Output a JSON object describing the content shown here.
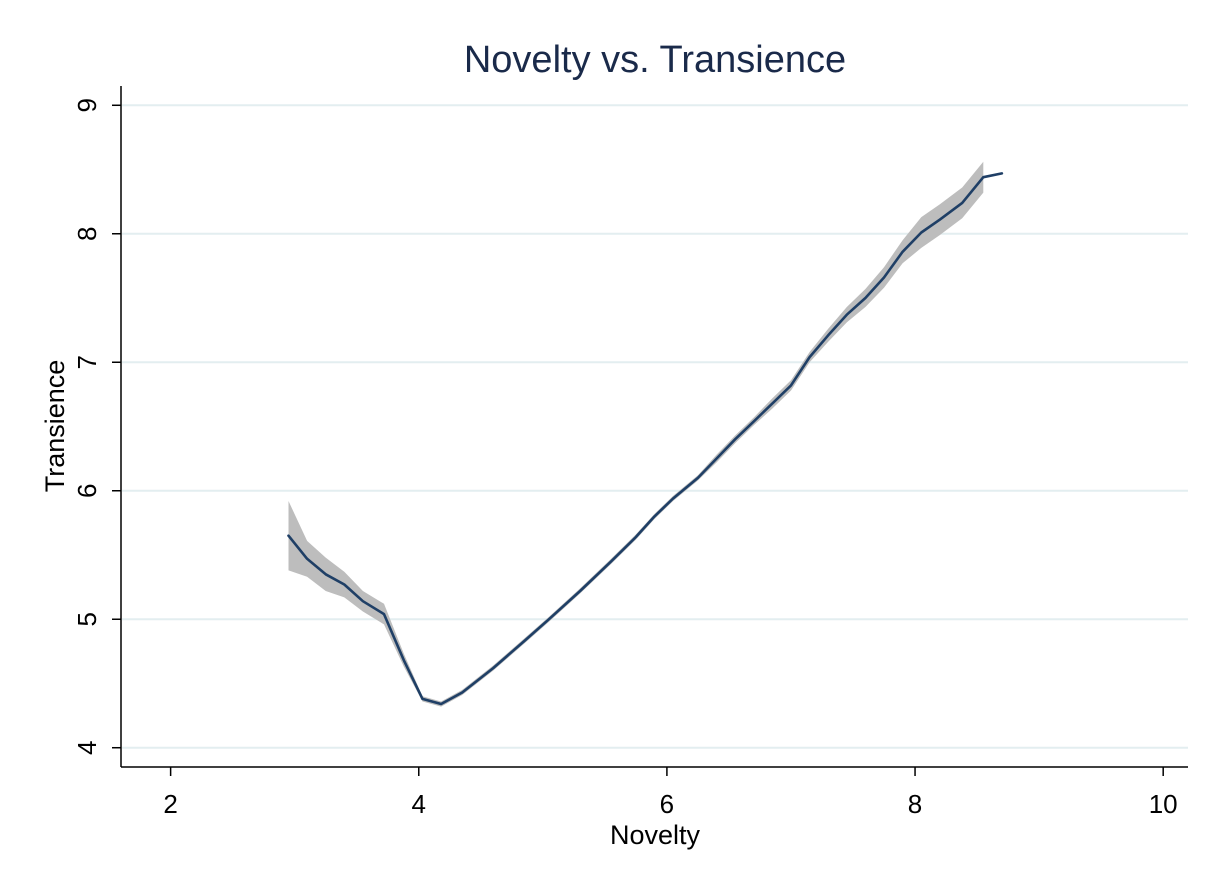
{
  "chart_data": {
    "type": "line",
    "title": "Novelty vs. Transience",
    "xlabel": "Novelty",
    "ylabel": "Transience",
    "xlim": [
      1.6,
      10.2
    ],
    "ylim": [
      3.85,
      9.15
    ],
    "xticks": [
      2,
      4,
      6,
      8,
      10
    ],
    "yticks": [
      4,
      5,
      6,
      7,
      8,
      9
    ],
    "grid": "horizontal",
    "colors": {
      "line": "#1f3f66",
      "band": "#bdbdbd",
      "grid": "#e3eef0",
      "axis": "#000000"
    },
    "series": [
      {
        "x": [
          2.95,
          3.1,
          3.25,
          3.4,
          3.55,
          3.72,
          3.88,
          4.03,
          4.18,
          4.35,
          4.6,
          4.85,
          5.05,
          5.3,
          5.55,
          5.75,
          5.9,
          6.05,
          6.25,
          6.4,
          6.55,
          6.7,
          6.85,
          7.0,
          7.15,
          7.3,
          7.45,
          7.6,
          7.75,
          7.9,
          8.05,
          8.2,
          8.38,
          8.55,
          8.7
        ],
        "y": [
          5.65,
          5.47,
          5.35,
          5.27,
          5.14,
          5.04,
          4.68,
          4.38,
          4.34,
          4.43,
          4.62,
          4.83,
          5.0,
          5.22,
          5.45,
          5.64,
          5.8,
          5.94,
          6.1,
          6.25,
          6.4,
          6.54,
          6.68,
          6.82,
          7.04,
          7.21,
          7.37,
          7.5,
          7.66,
          7.86,
          8.01,
          8.11,
          8.24,
          8.44,
          8.47
        ],
        "ci_x": [
          2.95,
          3.1,
          3.25,
          3.4,
          3.55,
          3.72,
          3.88,
          4.03,
          4.18,
          4.35,
          4.6,
          4.85,
          5.05,
          5.3,
          5.55,
          5.75,
          5.9,
          6.05,
          6.25,
          6.4,
          6.55,
          6.7,
          6.85,
          7.0,
          7.15,
          7.3,
          7.45,
          7.6,
          7.75,
          7.9,
          8.05,
          8.2,
          8.38,
          8.55
        ],
        "ci_upper": [
          5.92,
          5.61,
          5.48,
          5.37,
          5.22,
          5.12,
          4.73,
          4.4,
          4.36,
          4.45,
          4.64,
          4.85,
          5.02,
          5.24,
          5.47,
          5.66,
          5.82,
          5.96,
          6.12,
          6.28,
          6.43,
          6.57,
          6.72,
          6.86,
          7.08,
          7.26,
          7.43,
          7.57,
          7.74,
          7.95,
          8.13,
          8.23,
          8.36,
          8.56
        ],
        "ci_lower": [
          5.38,
          5.33,
          5.22,
          5.17,
          5.06,
          4.96,
          4.63,
          4.36,
          4.32,
          4.41,
          4.6,
          4.81,
          4.98,
          5.2,
          5.43,
          5.62,
          5.78,
          5.92,
          6.08,
          6.22,
          6.37,
          6.51,
          6.64,
          6.78,
          7.0,
          7.16,
          7.31,
          7.43,
          7.58,
          7.77,
          7.89,
          7.99,
          8.12,
          8.32
        ]
      }
    ]
  }
}
